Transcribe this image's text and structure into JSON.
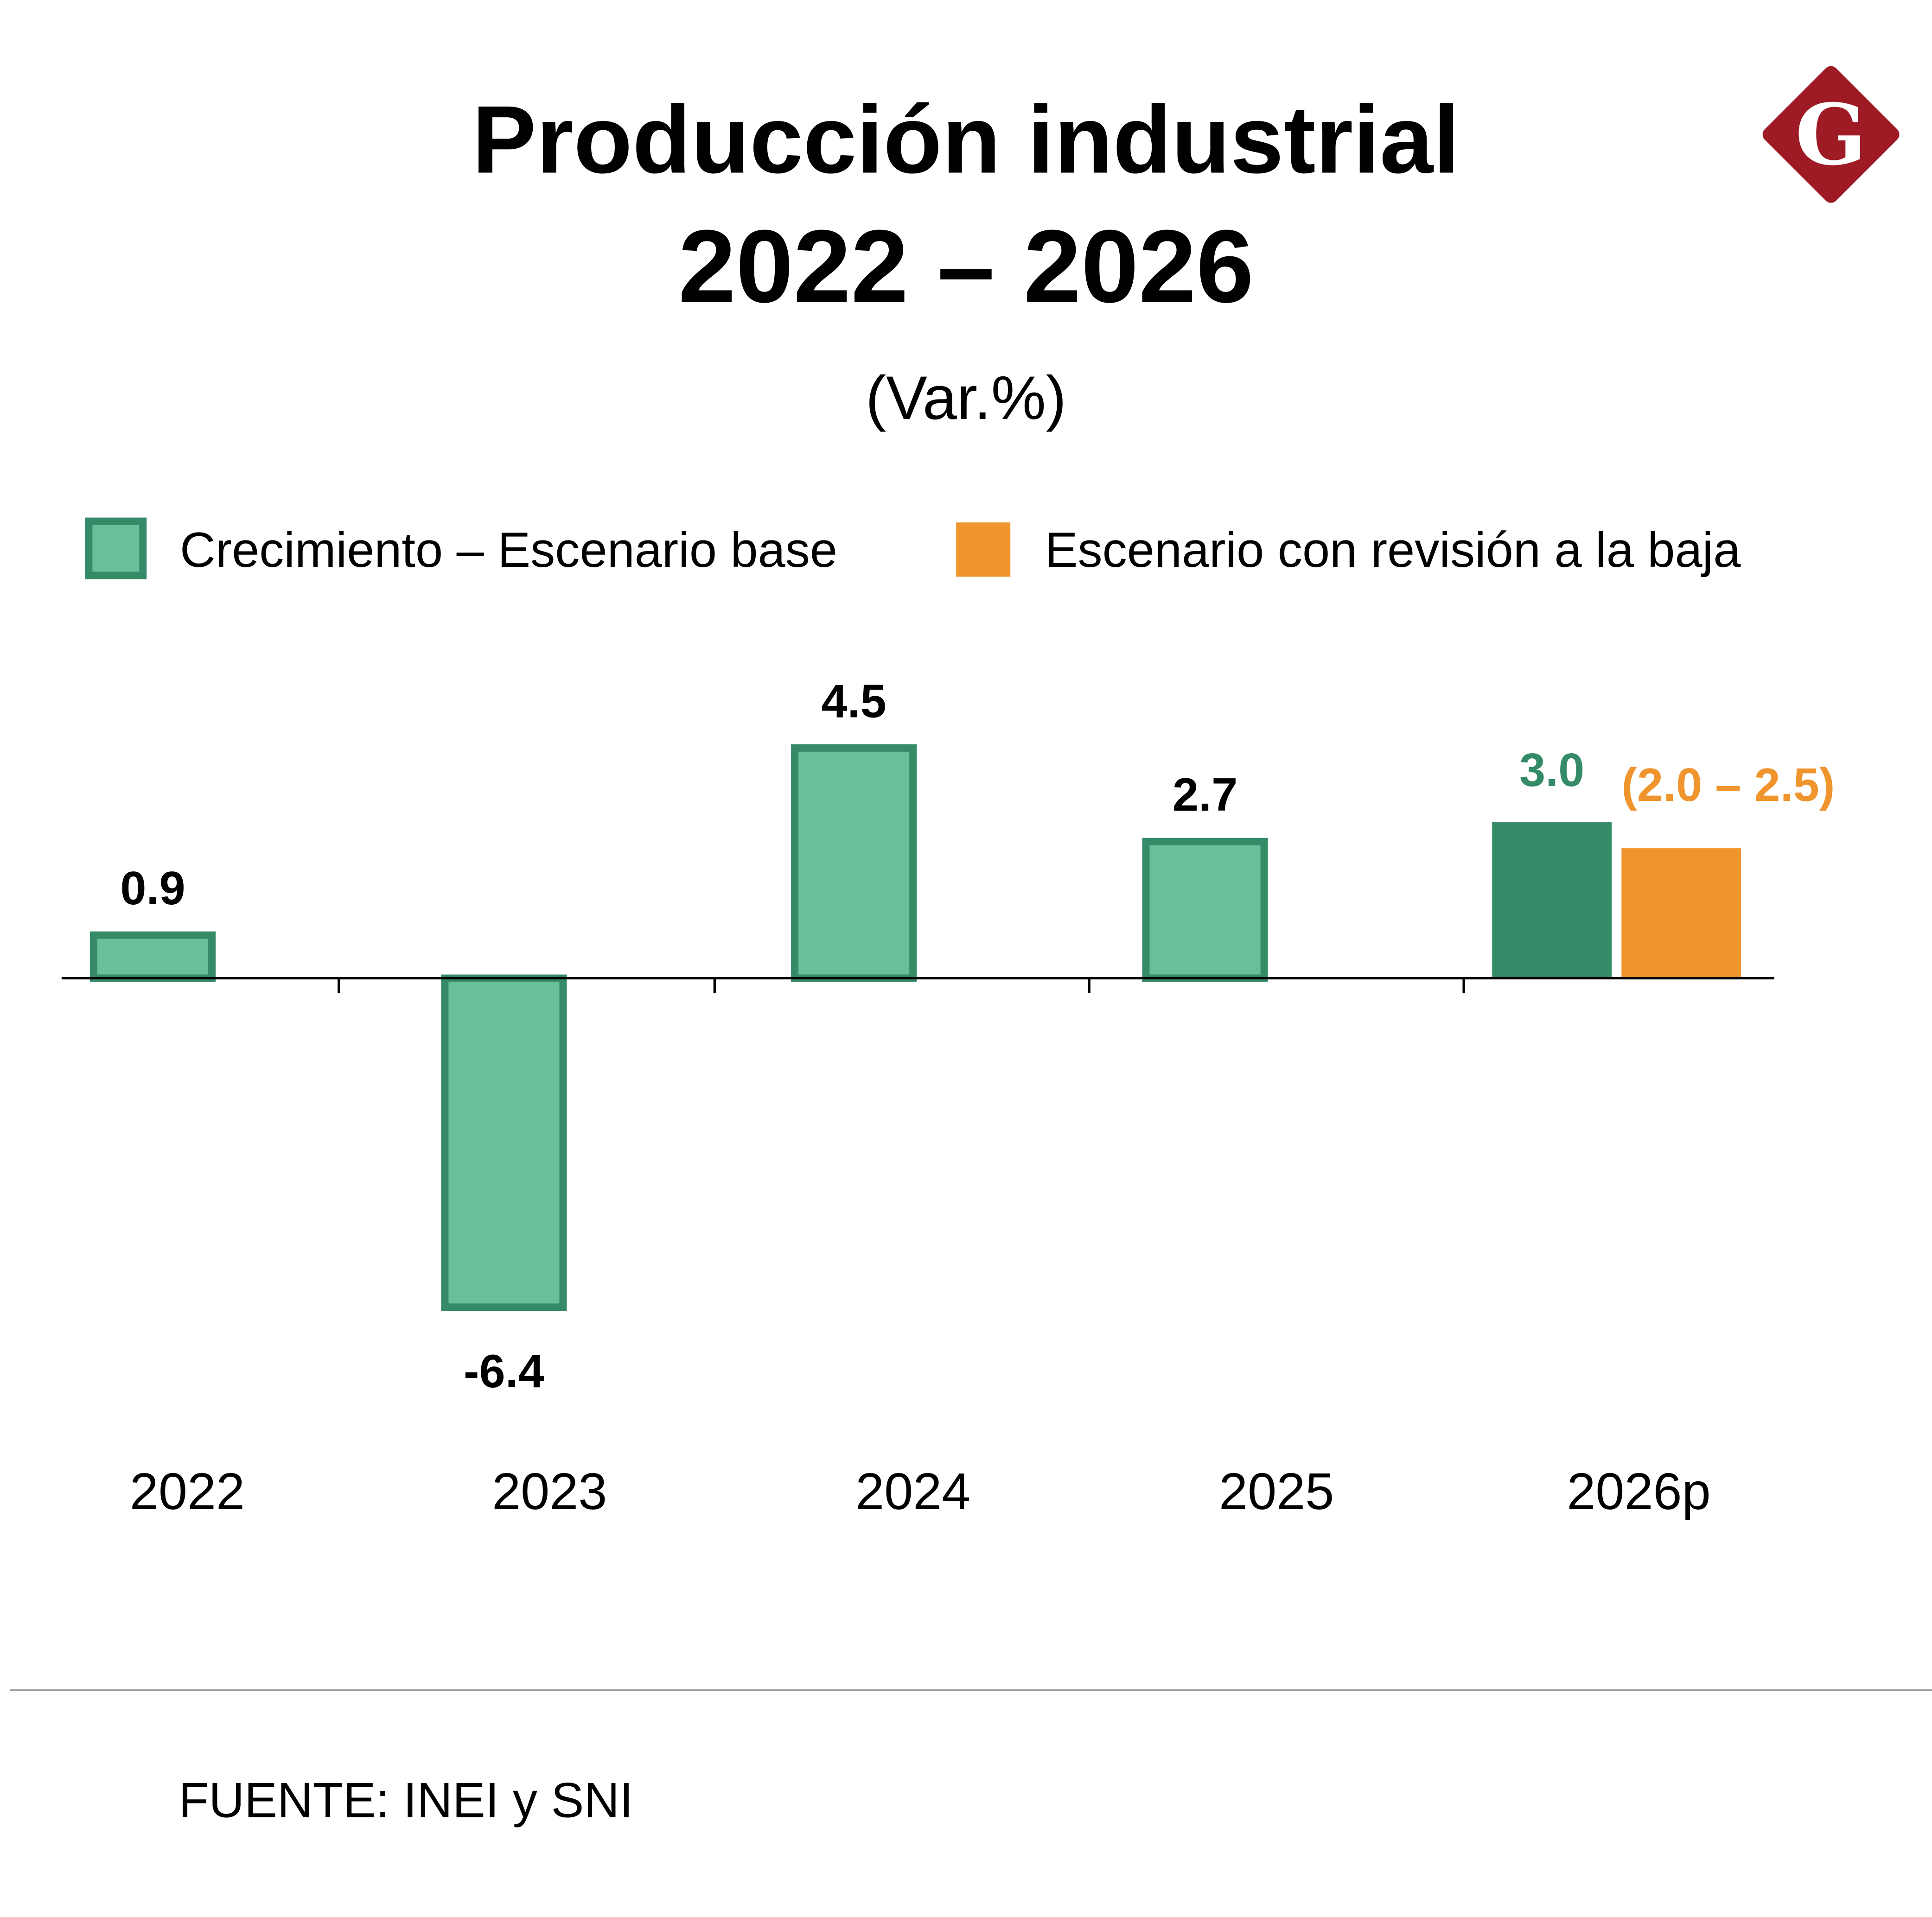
{
  "title_line1": "Producción industrial",
  "title_line2": "2022 – 2026",
  "subtitle": "(Var.%)",
  "source": "FUENTE: INEI y SNI",
  "logo_letter": "G",
  "colors": {
    "base_fill": "#68bf98",
    "base_stroke": "#358a68",
    "dark_green": "#358a68",
    "orange": "#f0942e",
    "logo": "#9e1b26"
  },
  "legend": [
    {
      "label": "Crecimiento – Escenario base",
      "color": "#68bf98"
    },
    {
      "label": "Escenario con revisión a la baja",
      "color": "#f0942e"
    }
  ],
  "chart_data": {
    "type": "bar",
    "categories": [
      "2022",
      "2023",
      "2024",
      "2025",
      "2026p"
    ],
    "series": [
      {
        "name": "Crecimiento – Escenario base",
        "values": [
          0.9,
          -6.4,
          4.5,
          2.7,
          3.0
        ],
        "labels": [
          "0.9",
          "-6.4",
          "4.5",
          "2.7",
          "3.0"
        ]
      },
      {
        "name": "Escenario con revisión a la baja",
        "values": [
          null,
          null,
          null,
          null,
          2.5
        ],
        "labels": [
          null,
          null,
          null,
          null,
          "(2.0 – 2.5)"
        ],
        "range": [
          2.0,
          2.5
        ]
      }
    ],
    "ylim": [
      -6.4,
      4.5
    ],
    "grid": false,
    "legend_position": "top"
  }
}
